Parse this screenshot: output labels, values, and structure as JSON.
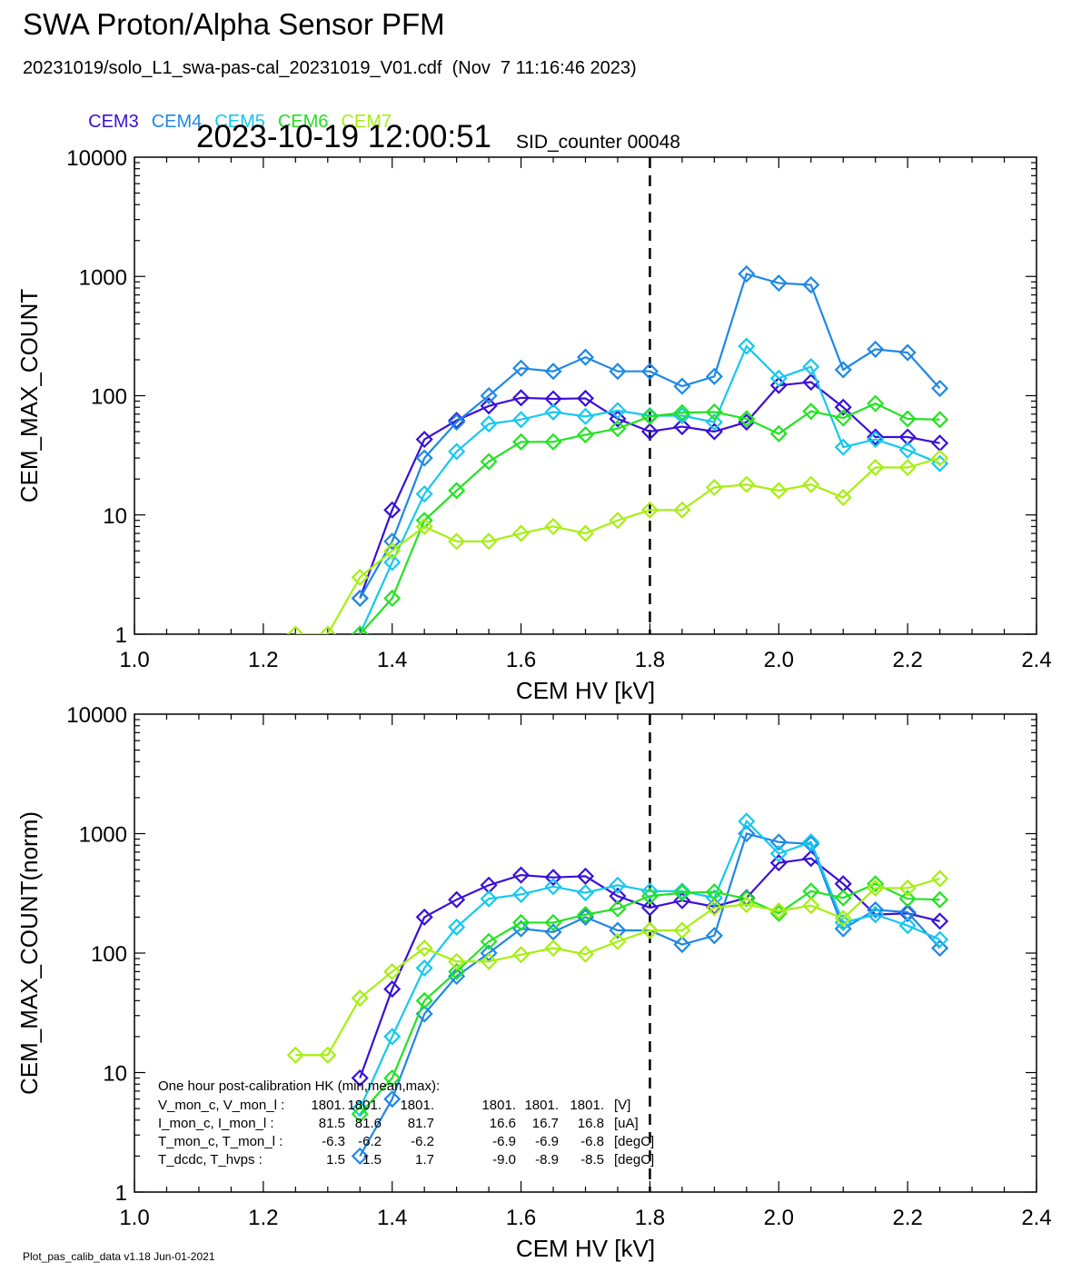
{
  "header": {
    "title": "SWA Proton/Alpha Sensor PFM",
    "subtitle": "20231019/solo_L1_swa-pas-cal_20231019_V01.cdf  (Nov  7 11:16:46 2023)",
    "timestamp": "2023-10-19 12:00:51",
    "sid_counter": "SID_counter 00048"
  },
  "legend": [
    {
      "label": "CEM3",
      "color": "#3a10d8"
    },
    {
      "label": "CEM4",
      "color": "#1e88e5"
    },
    {
      "label": "CEM5",
      "color": "#16c8ee"
    },
    {
      "label": "CEM6",
      "color": "#22e322"
    },
    {
      "label": "CEM7",
      "color": "#a6ef12"
    }
  ],
  "footer": "Plot_pas_calib_data v1.18 Jun-01-2021",
  "chart_data": [
    {
      "type": "line",
      "xlabel": "CEM HV [kV]",
      "ylabel": "CEM_MAX_COUNT",
      "xlim": [
        1.0,
        2.4
      ],
      "ylim": [
        1,
        10000
      ],
      "y_scale": "log",
      "xticks": [
        "1.0",
        "1.2",
        "1.4",
        "1.6",
        "1.8",
        "2.0",
        "2.2",
        "2.4"
      ],
      "yticks": [
        "1",
        "10",
        "100",
        "1000",
        "10000"
      ],
      "marker": "diamond",
      "reference_line": {
        "x": 1.8,
        "style": "dashed"
      },
      "series": [
        {
          "name": "CEM3",
          "color": "#3a10d8",
          "x": [
            1.35,
            1.4,
            1.45,
            1.5,
            1.55,
            1.6,
            1.65,
            1.7,
            1.75,
            1.8,
            1.85,
            1.9,
            1.95,
            2.0,
            2.05,
            2.1,
            2.15,
            2.2,
            2.25
          ],
          "y": [
            2,
            11,
            43,
            62,
            82,
            96,
            94,
            95,
            64,
            50,
            55,
            50,
            60,
            122,
            130,
            80,
            45,
            45,
            40
          ]
        },
        {
          "name": "CEM4",
          "color": "#1e88e5",
          "x": [
            1.35,
            1.4,
            1.45,
            1.5,
            1.55,
            1.6,
            1.65,
            1.7,
            1.75,
            1.8,
            1.85,
            1.9,
            1.95,
            2.0,
            2.05,
            2.1,
            2.15,
            2.2,
            2.25
          ],
          "y": [
            2,
            6,
            30,
            60,
            100,
            170,
            160,
            210,
            160,
            160,
            120,
            145,
            1050,
            880,
            850,
            165,
            245,
            230,
            115
          ]
        },
        {
          "name": "CEM5",
          "color": "#16c8ee",
          "x": [
            1.35,
            1.4,
            1.45,
            1.5,
            1.55,
            1.6,
            1.65,
            1.7,
            1.75,
            1.8,
            1.85,
            1.9,
            1.95,
            2.0,
            2.05,
            2.1,
            2.15,
            2.2,
            2.25
          ],
          "y": [
            1,
            4,
            15,
            34,
            58,
            63,
            73,
            67,
            75,
            68,
            68,
            60,
            260,
            140,
            175,
            37,
            43,
            35,
            27
          ]
        },
        {
          "name": "CEM6",
          "color": "#22e322",
          "x": [
            1.35,
            1.4,
            1.45,
            1.5,
            1.55,
            1.6,
            1.65,
            1.7,
            1.75,
            1.8,
            1.85,
            1.9,
            1.95,
            2.0,
            2.05,
            2.1,
            2.15,
            2.2,
            2.25
          ],
          "y": [
            1,
            2,
            9,
            16,
            28,
            41,
            41,
            47,
            53,
            67,
            72,
            73,
            64,
            48,
            74,
            65,
            86,
            64,
            63
          ]
        },
        {
          "name": "CEM7",
          "color": "#a6ef12",
          "x": [
            1.25,
            1.3,
            1.35,
            1.4,
            1.45,
            1.5,
            1.55,
            1.6,
            1.65,
            1.7,
            1.75,
            1.8,
            1.85,
            1.9,
            1.95,
            2.0,
            2.05,
            2.1,
            2.15,
            2.2,
            2.25
          ],
          "y": [
            1,
            1,
            3,
            5,
            8,
            6,
            6,
            7,
            8,
            7,
            9,
            11,
            11,
            17,
            18,
            16,
            18,
            14,
            25,
            25,
            30
          ]
        }
      ]
    },
    {
      "type": "line",
      "xlabel": "CEM HV [kV]",
      "ylabel": "CEM_MAX_COUNT(norm)",
      "xlim": [
        1.0,
        2.4
      ],
      "ylim": [
        1,
        10000
      ],
      "y_scale": "log",
      "xticks": [
        "1.0",
        "1.2",
        "1.4",
        "1.6",
        "1.8",
        "2.0",
        "2.2",
        "2.4"
      ],
      "yticks": [
        "1",
        "10",
        "100",
        "1000",
        "10000"
      ],
      "marker": "diamond",
      "reference_line": {
        "x": 1.8,
        "style": "dashed"
      },
      "series": [
        {
          "name": "CEM3",
          "color": "#3a10d8",
          "x": [
            1.35,
            1.4,
            1.45,
            1.5,
            1.55,
            1.6,
            1.65,
            1.7,
            1.75,
            1.8,
            1.85,
            1.9,
            1.95,
            2.0,
            2.05,
            2.1,
            2.15,
            2.2,
            2.25
          ],
          "y": [
            9,
            50,
            200,
            280,
            370,
            450,
            430,
            440,
            300,
            240,
            275,
            245,
            290,
            570,
            620,
            380,
            210,
            215,
            185
          ]
        },
        {
          "name": "CEM4",
          "color": "#1e88e5",
          "x": [
            1.35,
            1.4,
            1.45,
            1.5,
            1.55,
            1.6,
            1.65,
            1.7,
            1.75,
            1.8,
            1.85,
            1.9,
            1.95,
            2.0,
            2.05,
            2.1,
            2.15,
            2.2,
            2.25
          ],
          "y": [
            2,
            6,
            31,
            64,
            100,
            160,
            150,
            200,
            155,
            155,
            118,
            140,
            1000,
            850,
            820,
            160,
            230,
            220,
            110
          ]
        },
        {
          "name": "CEM5",
          "color": "#16c8ee",
          "x": [
            1.35,
            1.4,
            1.45,
            1.5,
            1.55,
            1.6,
            1.65,
            1.7,
            1.75,
            1.8,
            1.85,
            1.9,
            1.95,
            2.0,
            2.05,
            2.1,
            2.15,
            2.2,
            2.25
          ],
          "y": [
            5,
            20,
            75,
            165,
            285,
            310,
            360,
            320,
            370,
            330,
            330,
            290,
            1270,
            680,
            850,
            180,
            210,
            170,
            130
          ]
        },
        {
          "name": "CEM6",
          "color": "#22e322",
          "x": [
            1.35,
            1.4,
            1.45,
            1.5,
            1.55,
            1.6,
            1.65,
            1.7,
            1.75,
            1.8,
            1.85,
            1.9,
            1.95,
            2.0,
            2.05,
            2.1,
            2.15,
            2.2,
            2.25
          ],
          "y": [
            4.5,
            9,
            40,
            70,
            125,
            180,
            180,
            210,
            235,
            300,
            320,
            325,
            285,
            215,
            330,
            290,
            380,
            285,
            280
          ]
        },
        {
          "name": "CEM7",
          "color": "#a6ef12",
          "x": [
            1.25,
            1.3,
            1.35,
            1.4,
            1.45,
            1.5,
            1.55,
            1.6,
            1.65,
            1.7,
            1.75,
            1.8,
            1.85,
            1.9,
            1.95,
            2.0,
            2.05,
            2.1,
            2.15,
            2.2,
            2.25
          ],
          "y": [
            14,
            14,
            42,
            70,
            110,
            85,
            85,
            97,
            110,
            98,
            125,
            155,
            155,
            240,
            255,
            225,
            250,
            195,
            350,
            350,
            420
          ]
        }
      ],
      "hk_table": {
        "heading": "One hour post-calibration HK (min,mean,max):",
        "rows": [
          {
            "label": "V_mon_c, V_mon_l :",
            "c_min": "1801.",
            "c_mean": "1801.",
            "c_max": "1801.",
            "l_min": "1801.",
            "l_mean": "1801.",
            "l_max": "1801.",
            "unit": "[V]"
          },
          {
            "label": "I_mon_c,  I_mon_l :",
            "c_min": "81.5",
            "c_mean": "81.6",
            "c_max": "81.7",
            "l_min": "16.6",
            "l_mean": "16.7",
            "l_max": "16.8",
            "unit": "[uA]"
          },
          {
            "label": "T_mon_c, T_mon_l :",
            "c_min": "-6.3",
            "c_mean": "-6.2",
            "c_max": "-6.2",
            "l_min": "-6.9",
            "l_mean": "-6.9",
            "l_max": "-6.8",
            "unit": "[degC]"
          },
          {
            "label": "T_dcdc,    T_hvps :",
            "c_min": "1.5",
            "c_mean": "1.5",
            "c_max": "1.7",
            "l_min": "-9.0",
            "l_mean": "-8.9",
            "l_max": "-8.5",
            "unit": "[degC]"
          }
        ]
      }
    }
  ]
}
